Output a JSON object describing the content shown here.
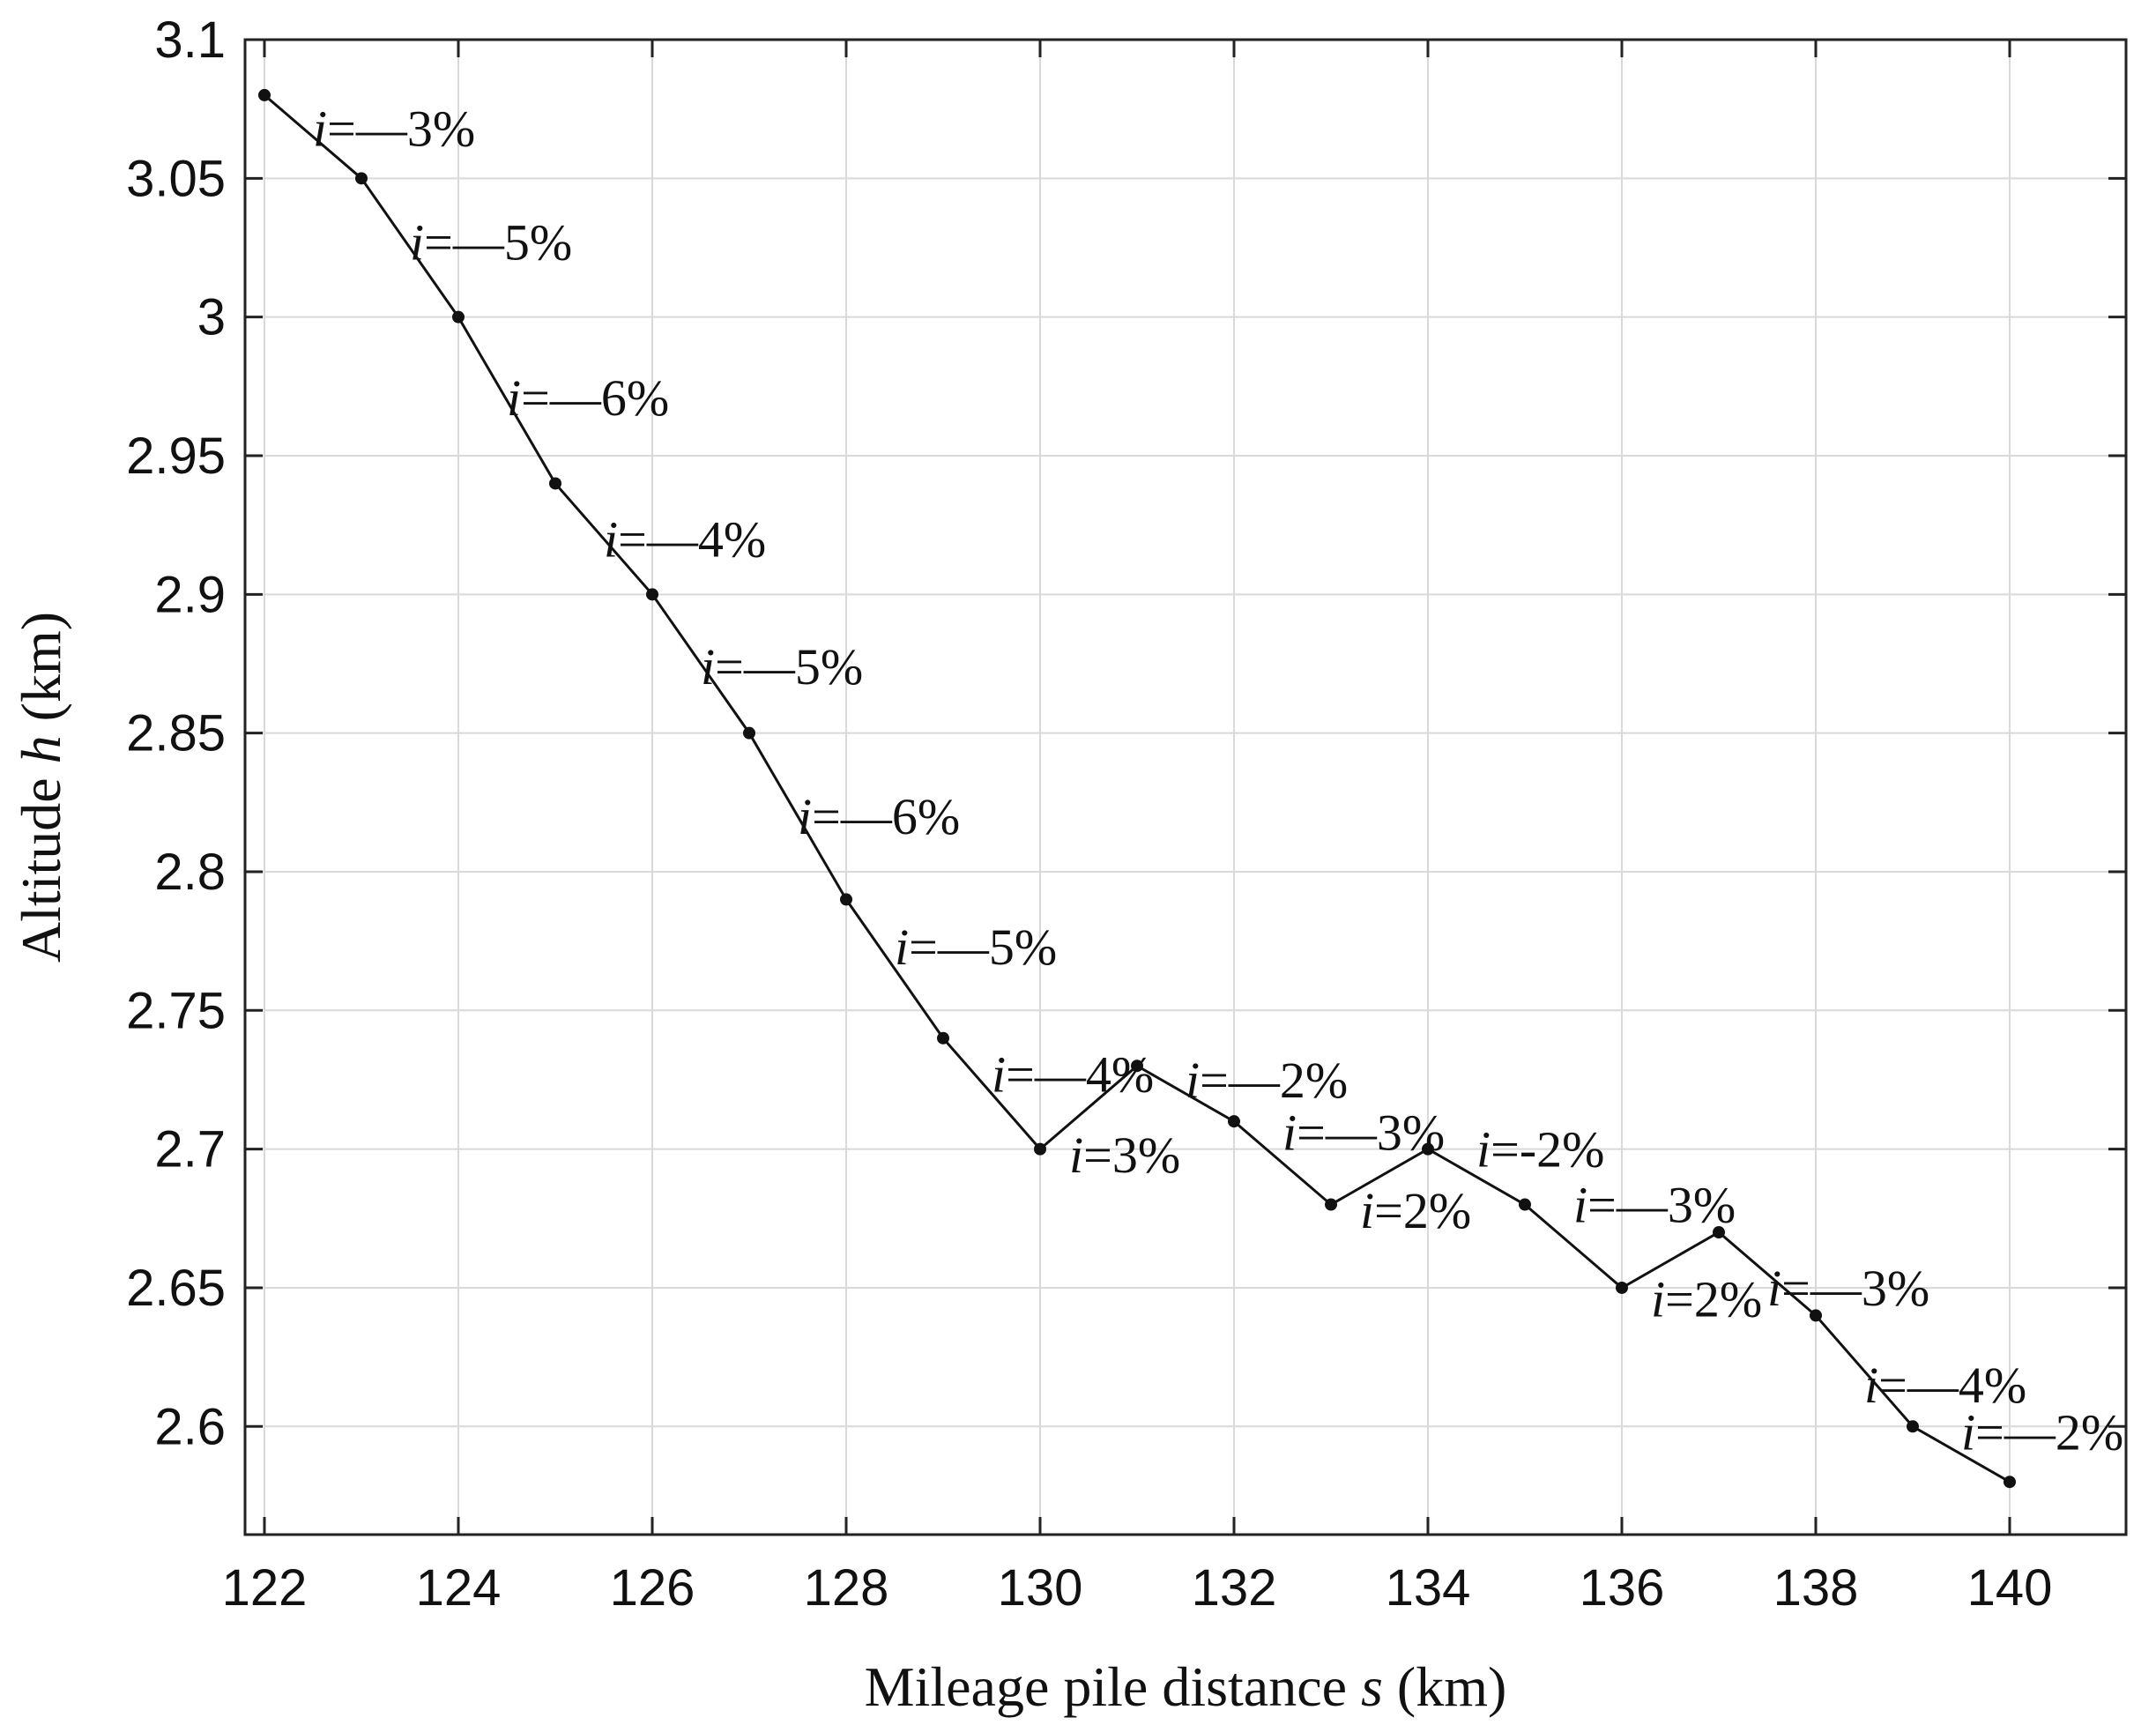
{
  "chart_data": {
    "type": "line",
    "title": "",
    "xlabel": {
      "prefix": "Mileage pile distance ",
      "var": "s",
      "suffix": " (km)"
    },
    "ylabel": {
      "prefix": "Altitude ",
      "var": "h",
      "suffix": " (km)"
    },
    "xlim": [
      121.8,
      141.2
    ],
    "ylim": [
      2.561,
      3.1
    ],
    "xticks": [
      122,
      124,
      126,
      128,
      130,
      132,
      134,
      136,
      138,
      140
    ],
    "yticks": [
      2.6,
      2.65,
      2.7,
      2.75,
      2.8,
      2.85,
      2.9,
      2.95,
      3.0,
      3.05,
      3.1
    ],
    "ytick_labels": [
      "2.6",
      "2.65",
      "2.7",
      "2.75",
      "2.8",
      "2.85",
      "2.9",
      "2.95",
      "3",
      "3.05",
      "3.1"
    ],
    "grid": true,
    "series": [
      {
        "x": [
          122,
          123,
          124,
          125,
          126,
          127,
          128,
          129,
          130,
          131,
          132,
          133,
          134,
          135,
          136,
          137,
          138,
          139,
          140
        ],
        "y": [
          3.08,
          3.05,
          3.0,
          2.94,
          2.9,
          2.85,
          2.79,
          2.74,
          2.7,
          2.73,
          2.71,
          2.68,
          2.7,
          2.68,
          2.65,
          2.67,
          2.64,
          2.6,
          2.58
        ]
      }
    ],
    "annotations": [
      {
        "var": "i",
        "text": "=—3%",
        "x": 122.5,
        "y": 3.068
      },
      {
        "var": "i",
        "text": "=—5%",
        "x": 123.5,
        "y": 3.027
      },
      {
        "var": "i",
        "text": "=—6%",
        "x": 124.5,
        "y": 2.971
      },
      {
        "var": "i",
        "text": "=—4%",
        "x": 125.5,
        "y": 2.92
      },
      {
        "var": "i",
        "text": "=—5%",
        "x": 126.5,
        "y": 2.874
      },
      {
        "var": "i",
        "text": "=—6%",
        "x": 127.5,
        "y": 2.82
      },
      {
        "var": "i",
        "text": "=—5%",
        "x": 128.5,
        "y": 2.773
      },
      {
        "var": "i",
        "text": "=—4%",
        "x": 129.5,
        "y": 2.727
      },
      {
        "var": "i",
        "text": "=3%",
        "x": 130.3,
        "y": 2.698
      },
      {
        "var": "i",
        "text": "=—2%",
        "x": 131.5,
        "y": 2.725
      },
      {
        "var": "i",
        "text": "=—3%",
        "x": 132.5,
        "y": 2.706
      },
      {
        "var": "i",
        "text": "=2%",
        "x": 133.3,
        "y": 2.678
      },
      {
        "var": "i",
        "text": "=-2%",
        "x": 134.5,
        "y": 2.7
      },
      {
        "var": "i",
        "text": "=—3%",
        "x": 135.5,
        "y": 2.68
      },
      {
        "var": "i",
        "text": "=2%",
        "x": 136.3,
        "y": 2.646
      },
      {
        "var": "i",
        "text": "=—3%",
        "x": 137.5,
        "y": 2.65
      },
      {
        "var": "i",
        "text": "=—4%",
        "x": 138.5,
        "y": 2.615
      },
      {
        "var": "i",
        "text": "=—2%",
        "x": 139.5,
        "y": 2.598
      }
    ]
  }
}
